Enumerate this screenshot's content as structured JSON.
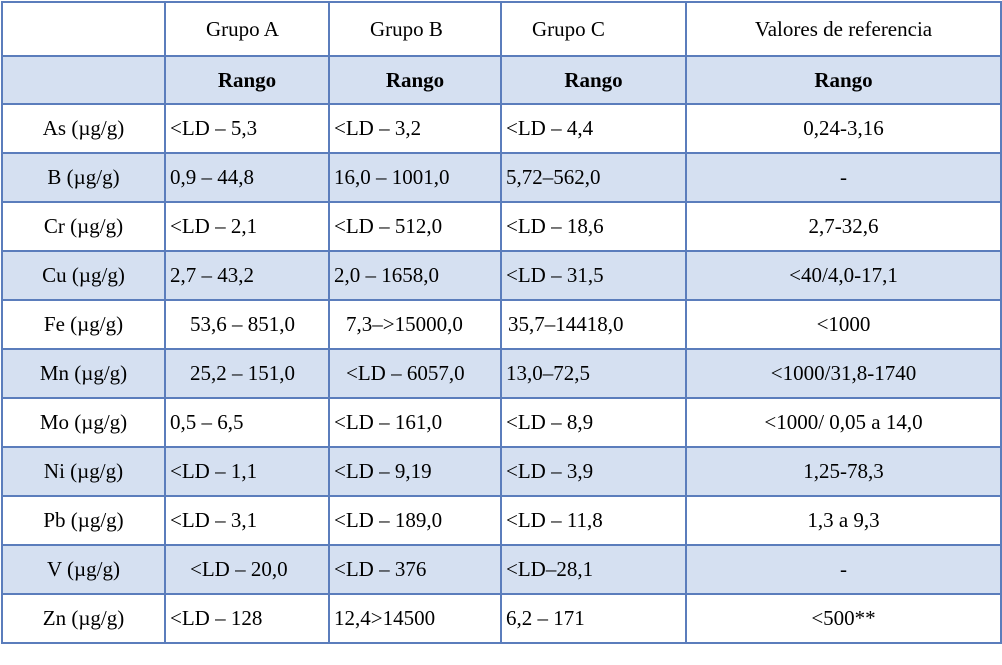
{
  "header": {
    "corner": "",
    "columns": [
      "Grupo A",
      "Grupo B",
      "Grupo C",
      "Valores de referencia"
    ]
  },
  "subheader": {
    "corner": "",
    "labels": [
      "Rango",
      "Rango",
      "Rango",
      "Rango"
    ]
  },
  "rows": [
    {
      "element": "As (µg/g)",
      "a": "<LD – 5,3",
      "b": "<LD – 3,2",
      "c": "<LD – 4,4",
      "ref": "0,24-3,16"
    },
    {
      "element": "B (µg/g)",
      "a": "0,9 – 44,8",
      "b": "16,0 – 1001,0",
      "c": "5,72–562,0",
      "ref": "-"
    },
    {
      "element": "Cr (µg/g)",
      "a": "<LD – 2,1",
      "b": "<LD – 512,0",
      "c": "<LD – 18,6",
      "ref": "2,7-32,6"
    },
    {
      "element": "Cu (µg/g)",
      "a": "2,7 – 43,2",
      "b": "2,0 – 1658,0",
      "c": "<LD – 31,5",
      "ref": "<40/4,0-17,1"
    },
    {
      "element": "Fe (µg/g)",
      "a": "53,6 – 851,0",
      "b": "7,3–>15000,0",
      "c": "35,7–14418,0",
      "ref": "<1000"
    },
    {
      "element": "Mn (µg/g)",
      "a": "25,2 – 151,0",
      "b": "<LD – 6057,0",
      "c": "13,0–72,5",
      "ref": "<1000/31,8-1740"
    },
    {
      "element": "Mo (µg/g)",
      "a": "0,5 – 6,5",
      "b": "<LD – 161,0",
      "c": "<LD – 8,9",
      "ref": "<1000/ 0,05 a 14,0"
    },
    {
      "element": "Ni (µg/g)",
      "a": "<LD – 1,1",
      "b": "<LD – 9,19",
      "c": "<LD – 3,9",
      "ref": "1,25-78,3"
    },
    {
      "element": "Pb (µg/g)",
      "a": "<LD – 3,1",
      "b": "<LD – 189,0",
      "c": "<LD – 11,8",
      "ref": "1,3 a 9,3"
    },
    {
      "element": "V (µg/g)",
      "a": "<LD – 20,0",
      "b": "<LD – 376",
      "c": "<LD–28,1",
      "ref": "-"
    },
    {
      "element": "Zn (µg/g)",
      "a": "<LD – 128",
      "b": "12,4>14500",
      "c": "6,2 – 171",
      "ref": "<500**"
    }
  ],
  "colors": {
    "border": "#5b7dbc",
    "shade": "#d5e0f1"
  }
}
